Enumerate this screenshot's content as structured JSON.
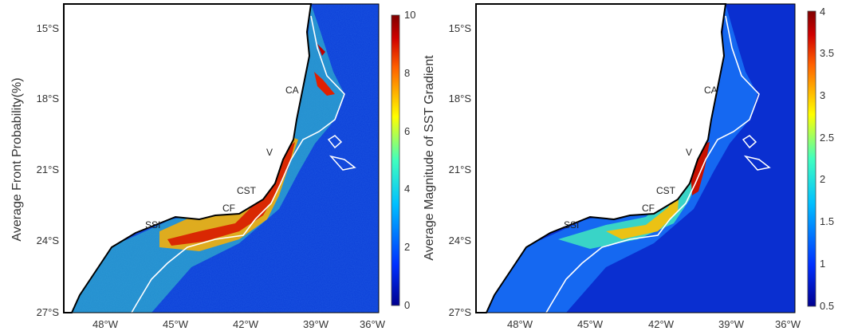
{
  "panels": [
    {
      "ylabel": "Average Front Probability(%)",
      "y_ticks": [
        "15°S",
        "18°S",
        "21°S",
        "24°S",
        "27°S"
      ],
      "x_ticks": [
        "48°W",
        "45°W",
        "42°W",
        "39°W",
        "36°W"
      ],
      "colorbar": {
        "colors": [
          "#00008f",
          "#0040ff",
          "#00c0ff",
          "#40ffbf",
          "#ffff00",
          "#ff8000",
          "#e00000",
          "#800000"
        ],
        "ticks": [
          "0",
          "2",
          "4",
          "6",
          "8",
          "10"
        ]
      },
      "sites": [
        "CA",
        "V",
        "CST",
        "CF",
        "SSI"
      ]
    },
    {
      "ylabel": "Average Magnitude of SST Gradient",
      "y_ticks": [
        "15°S",
        "18°S",
        "21°S",
        "24°S",
        "27°S"
      ],
      "x_ticks": [
        "48°W",
        "45°W",
        "42°W",
        "39°W",
        "36°W"
      ],
      "colorbar": {
        "colors": [
          "#00008f",
          "#0040ff",
          "#00c0ff",
          "#40ffbf",
          "#ffff00",
          "#ff8000",
          "#e00000",
          "#800000"
        ],
        "ticks": [
          "0.5",
          "1",
          "1.5",
          "2",
          "2.5",
          "3",
          "3.5",
          "4"
        ]
      },
      "sites": [
        "CA",
        "V",
        "CST",
        "CF",
        "SSI"
      ]
    }
  ]
}
